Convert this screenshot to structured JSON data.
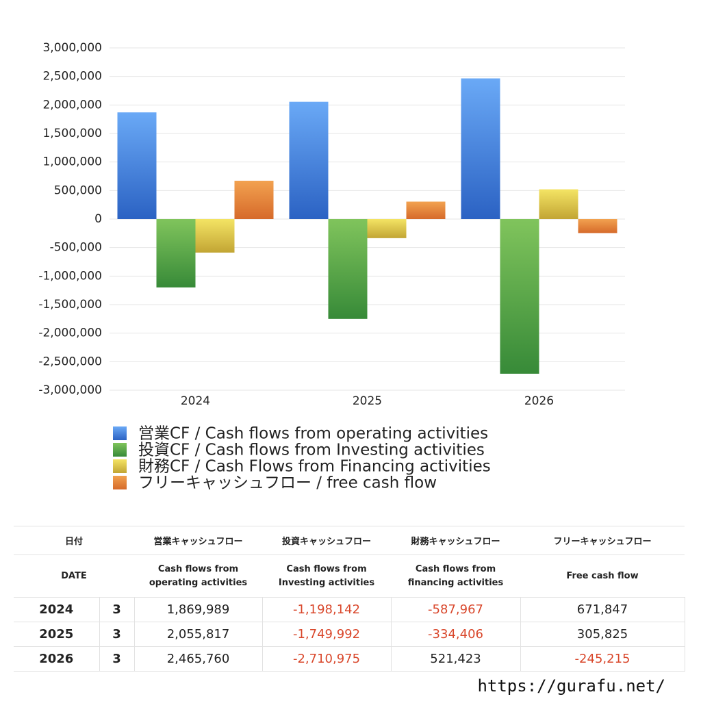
{
  "chart_data": {
    "type": "bar",
    "categories": [
      "2024",
      "2025",
      "2026"
    ],
    "series": [
      {
        "name": "営業CF / Cash flows from operating activities",
        "color": [
          "#6aa9f6",
          "#2b62c3"
        ],
        "values": [
          1869989,
          2055817,
          2465760
        ]
      },
      {
        "name": "投資CF / Cash flows from Investing activities",
        "color": [
          "#80c45c",
          "#378a38"
        ],
        "values": [
          -1198142,
          -1749992,
          -2710975
        ]
      },
      {
        "name": "財務CF / Cash Flows from Financing activities",
        "color": [
          "#f4e464",
          "#c2a534"
        ],
        "values": [
          -587967,
          -334406,
          521423
        ]
      },
      {
        "name": "フリーキャッシュフロー / free cash flow",
        "color": [
          "#f2a250",
          "#d66a2a"
        ],
        "values": [
          671847,
          305825,
          -245215
        ]
      }
    ],
    "ylim": [
      -3000000,
      3000000
    ],
    "yticks": [
      {
        "value": -3000000,
        "label": "-3,000,000"
      },
      {
        "value": -2500000,
        "label": "-2,500,000"
      },
      {
        "value": -2000000,
        "label": "-2,000,000"
      },
      {
        "value": -1500000,
        "label": "-1,500,000"
      },
      {
        "value": -1000000,
        "label": "-1,000,000"
      },
      {
        "value": -500000,
        "label": "-500,000"
      },
      0,
      {
        "value": 500000,
        "label": "500,000"
      },
      {
        "value": 1000000,
        "label": "1,000,000"
      },
      {
        "value": 1500000,
        "label": "1,500,000"
      },
      {
        "value": 2000000,
        "label": "2,000,000"
      },
      {
        "value": 2500000,
        "label": "2,500,000"
      },
      {
        "value": 3000000,
        "label": "3,000,000"
      }
    ],
    "grid": true,
    "legend": "bottom"
  },
  "table": {
    "header": [
      [
        "日付",
        "営業キャッシュフロー",
        "投資キャッシュフロー",
        "財務キャッシュフロー",
        "フリーキャッシュフロー"
      ],
      [
        "DATE",
        "Cash flows from\noperating activities",
        "Cash flows from\nInvesting activities",
        "Cash flows from\nfinancing activities",
        "Free cash flow"
      ]
    ],
    "rows": [
      [
        "2024",
        "3",
        "1,869,989",
        "-1,198,142",
        "-587,967",
        "671,847"
      ],
      [
        "2025",
        "3",
        "2,055,817",
        "-1,749,992",
        "-334,406",
        "305,825"
      ],
      [
        "2026",
        "3",
        "2,465,760",
        "-2,710,975",
        "521,423",
        "-245,215"
      ]
    ],
    "negative_color": "#d9472b"
  },
  "footer": "https://gurafu.net/"
}
